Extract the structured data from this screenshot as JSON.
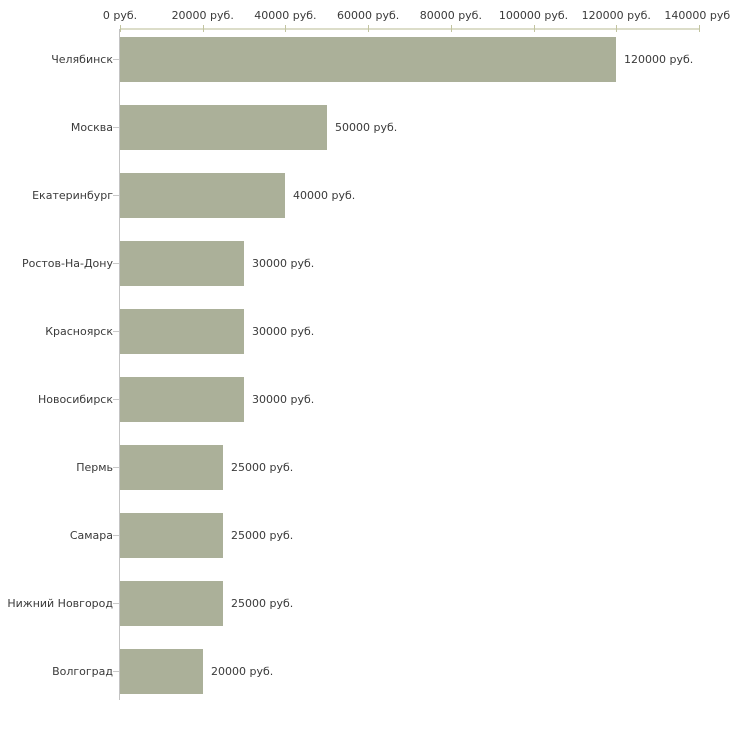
{
  "chart_data": {
    "type": "bar",
    "orientation": "horizontal",
    "title": "",
    "xlabel": "",
    "ylabel": "",
    "grid": false,
    "legend": false,
    "categories": [
      "Челябинск",
      "Москва",
      "Екатеринбург",
      "Ростов-На-Дону",
      "Красноярск",
      "Новосибирск",
      "Пермь",
      "Самара",
      "Нижний Новгород",
      "Волгоград"
    ],
    "values": [
      120000,
      50000,
      40000,
      30000,
      30000,
      30000,
      25000,
      25000,
      25000,
      20000
    ],
    "value_labels": [
      "120000 руб.",
      "50000 руб.",
      "40000 руб.",
      "30000 руб.",
      "30000 руб.",
      "30000 руб.",
      "25000 руб.",
      "25000 руб.",
      "25000 руб.",
      "20000 руб."
    ],
    "x_axis": {
      "position": "top",
      "min": 0,
      "max": 140000,
      "tick_step": 20000,
      "tick_labels": [
        "0 руб.",
        "20000 руб.",
        "40000 руб.",
        "60000 руб.",
        "80000 руб.",
        "100000 руб.",
        "120000 руб.",
        "140000 руб."
      ]
    },
    "colors": {
      "bar_fill": "#abb099",
      "x_axis_line": "#dcddc9",
      "x_tick_mark": "#c2c4a0",
      "y_axis_line": "#c3c3c3",
      "category_tick": "#c9c9c9",
      "text": "#3a3a3a",
      "background": "#ffffff"
    }
  }
}
